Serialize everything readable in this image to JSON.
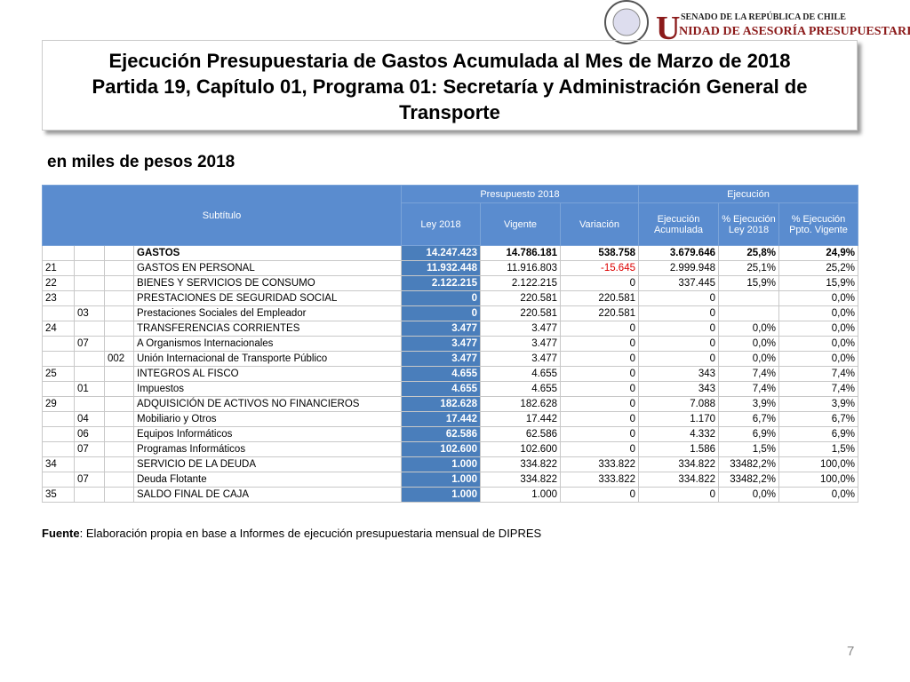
{
  "header": {
    "senate": "SENADO DE LA REPÚBLICA DE CHILE",
    "unit_initial": "U",
    "unit": "NIDAD DE ASESORÍA PRESUPUESTARIA"
  },
  "title": [
    "Ejecución Presupuestaria de Gastos Acumulada al Mes de Marzo de 2018",
    "Partida 19, Capítulo 01, Programa 01: Secretaría y Administración General de Transporte"
  ],
  "subtitle": "en miles de pesos 2018",
  "table": {
    "subtitle_header": "Subtítulo",
    "groups": [
      "Presupuesto 2018",
      "Ejecución"
    ],
    "columns": [
      "Ley 2018",
      "Vigente",
      "Variación",
      "Ejecución Acumulada",
      "% Ejecución Ley 2018",
      "% Ejecución Ppto. Vigente"
    ],
    "rows": [
      [
        null,
        null,
        null,
        "GASTOS",
        "14.247.423",
        "14.786.181",
        "538.758",
        "3.679.646",
        "25,8%",
        "24,9%"
      ],
      [
        "21",
        null,
        null,
        "GASTOS EN PERSONAL",
        "11.932.448",
        "11.916.803",
        "-15.645",
        "2.999.948",
        "25,1%",
        "25,2%"
      ],
      [
        "22",
        null,
        null,
        "BIENES Y SERVICIOS DE CONSUMO",
        "2.122.215",
        "2.122.215",
        "0",
        "337.445",
        "15,9%",
        "15,9%"
      ],
      [
        "23",
        null,
        null,
        "PRESTACIONES DE SEGURIDAD SOCIAL",
        "0",
        "220.581",
        "220.581",
        "0",
        null,
        "0,0%"
      ],
      [
        null,
        "03",
        null,
        "Prestaciones Sociales del Empleador",
        "0",
        "220.581",
        "220.581",
        "0",
        null,
        "0,0%"
      ],
      [
        "24",
        null,
        null,
        "TRANSFERENCIAS CORRIENTES",
        "3.477",
        "3.477",
        "0",
        "0",
        "0,0%",
        "0,0%"
      ],
      [
        null,
        "07",
        null,
        "A Organismos Internacionales",
        "3.477",
        "3.477",
        "0",
        "0",
        "0,0%",
        "0,0%"
      ],
      [
        null,
        null,
        "002",
        "Unión Internacional de Transporte Público",
        "3.477",
        "3.477",
        "0",
        "0",
        "0,0%",
        "0,0%"
      ],
      [
        "25",
        null,
        null,
        "INTEGROS AL FISCO",
        "4.655",
        "4.655",
        "0",
        "343",
        "7,4%",
        "7,4%"
      ],
      [
        null,
        "01",
        null,
        "Impuestos",
        "4.655",
        "4.655",
        "0",
        "343",
        "7,4%",
        "7,4%"
      ],
      [
        "29",
        null,
        null,
        "ADQUISICIÓN DE ACTIVOS NO FINANCIEROS",
        "182.628",
        "182.628",
        "0",
        "7.088",
        "3,9%",
        "3,9%"
      ],
      [
        null,
        "04",
        null,
        "Mobiliario y Otros",
        "17.442",
        "17.442",
        "0",
        "1.170",
        "6,7%",
        "6,7%"
      ],
      [
        null,
        "06",
        null,
        "Equipos Informáticos",
        "62.586",
        "62.586",
        "0",
        "4.332",
        "6,9%",
        "6,9%"
      ],
      [
        null,
        "07",
        null,
        "Programas Informáticos",
        "102.600",
        "102.600",
        "0",
        "1.586",
        "1,5%",
        "1,5%"
      ],
      [
        "34",
        null,
        null,
        "SERVICIO DE LA DEUDA",
        "1.000",
        "334.822",
        "333.822",
        "334.822",
        "33482,2%",
        "100,0%"
      ],
      [
        null,
        "07",
        null,
        "Deuda Flotante",
        "1.000",
        "334.822",
        "333.822",
        "334.822",
        "33482,2%",
        "100,0%"
      ],
      [
        "35",
        null,
        null,
        "SALDO FINAL DE CAJA",
        "1.000",
        "1.000",
        "0",
        "0",
        "0,0%",
        "0,0%"
      ]
    ]
  },
  "source_label": "Fuente",
  "source_text": ": Elaboración propia en base  a Informes de ejecución presupuestaria mensual de DIPRES",
  "page_number": "7"
}
